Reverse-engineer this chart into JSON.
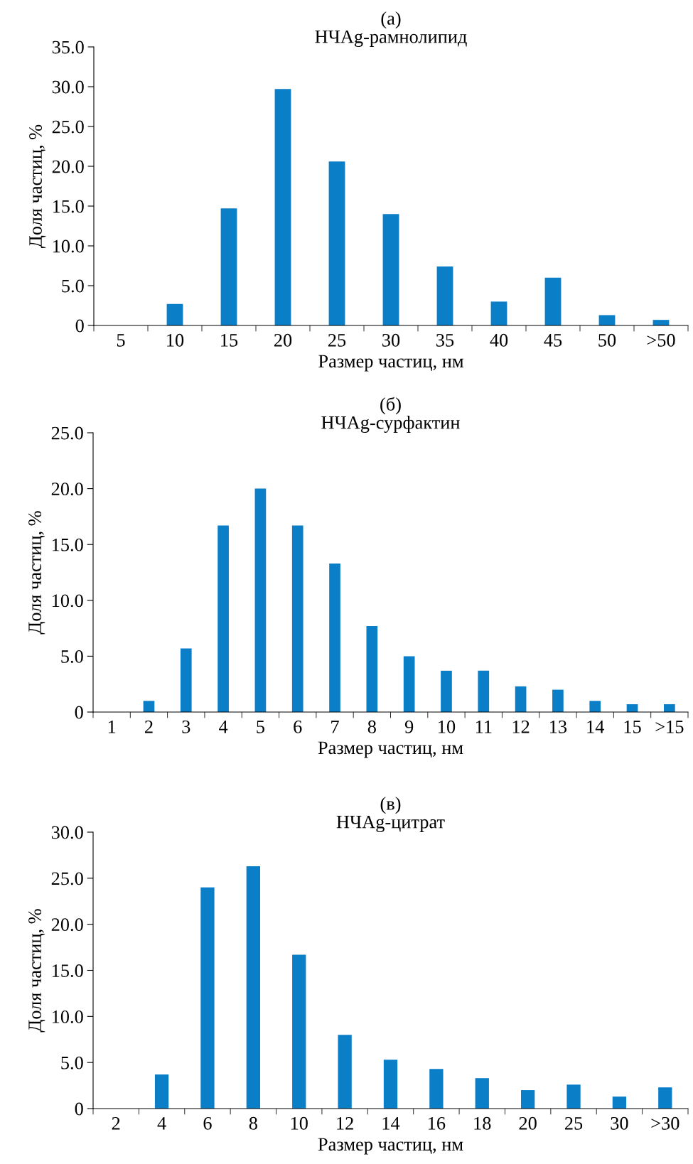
{
  "chart_data": [
    {
      "type": "bar",
      "title": "(а)",
      "subtitle": "НЧAg-рамнолипид",
      "xlabel": "Размер частиц, нм",
      "ylabel": "Доля частиц, %",
      "color": "#0a7fc7",
      "categories": [
        "5",
        "10",
        "15",
        "20",
        "25",
        "30",
        "35",
        "40",
        "45",
        "50",
        ">50"
      ],
      "values": [
        0,
        2.7,
        14.7,
        29.7,
        20.6,
        14.0,
        7.4,
        3.0,
        6.0,
        1.3,
        0.7
      ],
      "ylim": [
        0,
        35
      ],
      "yticks": [
        0,
        {
          "value": 5,
          "label": "5.0"
        },
        {
          "value": 10,
          "label": "10.0"
        },
        {
          "value": 15,
          "label": "15.0"
        },
        {
          "value": 20,
          "label": "20.0"
        },
        {
          "value": 25,
          "label": "25.0"
        },
        {
          "value": 30,
          "label": "30.0"
        },
        {
          "value": 35,
          "label": "35.0"
        }
      ],
      "grid": false
    },
    {
      "type": "bar",
      "title": "(б)",
      "subtitle": "НЧAg-сурфактин",
      "xlabel": "Размер частиц, нм",
      "ylabel": "Доля частиц, %",
      "color": "#0a7fc7",
      "categories": [
        "1",
        "2",
        "3",
        "4",
        "5",
        "6",
        "7",
        "8",
        "9",
        "10",
        "11",
        "12",
        "13",
        "14",
        "15",
        ">15"
      ],
      "values": [
        0,
        1.0,
        5.7,
        16.7,
        20.0,
        16.7,
        13.3,
        7.7,
        5.0,
        3.7,
        3.7,
        2.3,
        2.0,
        1.0,
        0.7,
        0.7
      ],
      "ylim": [
        0,
        25
      ],
      "yticks": [
        0,
        {
          "value": 5,
          "label": "5.0"
        },
        {
          "value": 10,
          "label": "10.0"
        },
        {
          "value": 15,
          "label": "15.0"
        },
        {
          "value": 20,
          "label": "20.0"
        },
        {
          "value": 25,
          "label": "25.0"
        }
      ],
      "grid": false
    },
    {
      "type": "bar",
      "title": "(в)",
      "subtitle": "НЧAg-цитрат",
      "xlabel": "Размер частиц, нм",
      "ylabel": "Доля частиц, %",
      "color": "#0a7fc7",
      "categories": [
        "2",
        "4",
        "6",
        "8",
        "10",
        "12",
        "14",
        "16",
        "18",
        "20",
        "25",
        "30",
        ">30"
      ],
      "values": [
        0,
        3.7,
        24.0,
        26.3,
        16.7,
        8.0,
        5.3,
        4.3,
        3.3,
        2.0,
        2.6,
        1.3,
        2.3
      ],
      "ylim": [
        0,
        30
      ],
      "yticks": [
        0,
        {
          "value": 5,
          "label": "5.0"
        },
        {
          "value": 10,
          "label": "10.0"
        },
        {
          "value": 15,
          "label": "15.0"
        },
        {
          "value": 20,
          "label": "20.0"
        },
        {
          "value": 25,
          "label": "25.0"
        },
        {
          "value": 30,
          "label": "30.0"
        }
      ],
      "grid": false
    }
  ]
}
